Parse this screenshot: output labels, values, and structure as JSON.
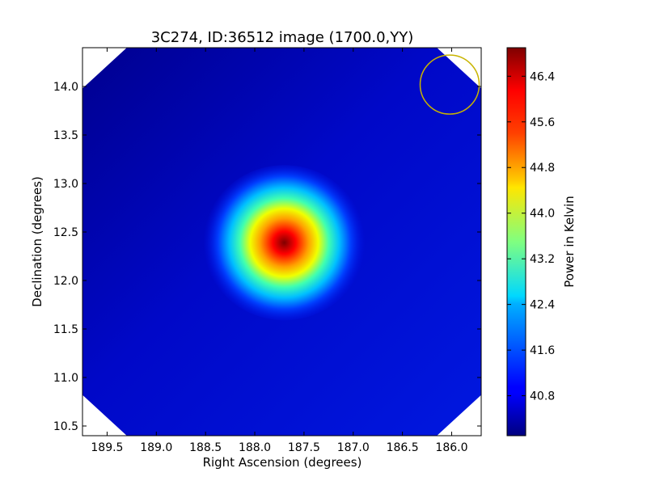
{
  "chart_data": {
    "type": "heatmap",
    "title": "3C274, ID:36512 image (1700.0,YY)",
    "xlabel": "Right Ascension (degrees)",
    "ylabel": "Declination (degrees)",
    "xlim": [
      189.75,
      185.7
    ],
    "ylim": [
      10.4,
      14.4
    ],
    "x_ticks": [
      189.5,
      189.0,
      188.5,
      188.0,
      187.5,
      187.0,
      186.5,
      186.0
    ],
    "x_tick_labels": [
      "189.5",
      "189.0",
      "188.5",
      "188.0",
      "187.5",
      "187.0",
      "186.5",
      "186.0"
    ],
    "y_ticks": [
      10.5,
      11.0,
      11.5,
      12.0,
      12.5,
      13.0,
      13.5,
      14.0
    ],
    "y_tick_labels": [
      "10.5",
      "11.0",
      "11.5",
      "12.0",
      "12.5",
      "13.0",
      "13.5",
      "14.0"
    ],
    "colorbar": {
      "label": "Power in Kelvin",
      "range": [
        40.1,
        46.9
      ],
      "ticks": [
        40.8,
        41.6,
        42.4,
        43.2,
        44.0,
        44.8,
        45.6,
        46.4
      ],
      "tick_labels": [
        "40.8",
        "41.6",
        "42.4",
        "43.2",
        "44.0",
        "44.8",
        "45.6",
        "46.4"
      ],
      "colormap": "jet"
    },
    "source": {
      "ra": 187.7,
      "dec": 12.39,
      "peak_value": 46.9,
      "background_value": 40.7
    },
    "beam_marker": {
      "ra": 186.02,
      "dec": 14.02,
      "radius_deg": 0.3,
      "color": "#c8b400"
    },
    "cut_corner_ra_span": 0.45,
    "cut_corner_dec_span": 0.42,
    "grid": false,
    "legend": "none"
  }
}
